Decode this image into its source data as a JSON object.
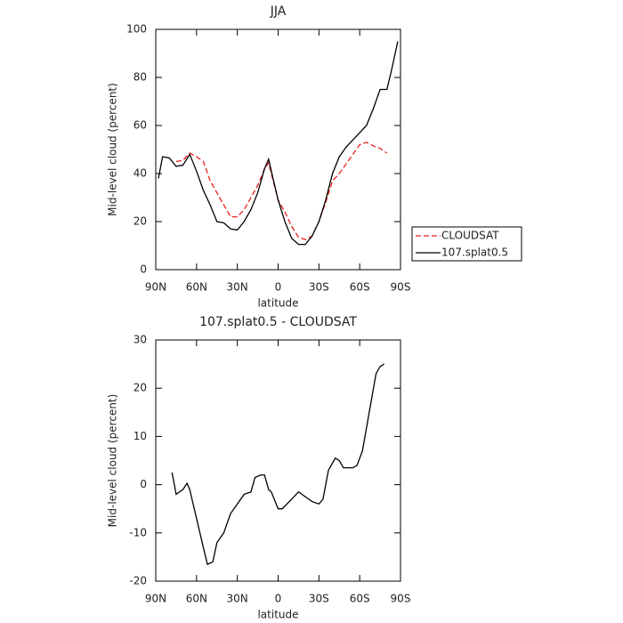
{
  "chart_data": [
    {
      "type": "line",
      "title": "JJA",
      "x_label": "latitude",
      "y_label": "Mid-level cloud (percent)",
      "x": [
        88,
        85,
        80,
        75,
        70,
        65,
        60,
        55,
        50,
        45,
        40,
        35,
        30,
        25,
        20,
        15,
        10,
        7,
        5,
        0,
        -5,
        -10,
        -15,
        -20,
        -25,
        -30,
        -35,
        -40,
        -45,
        -50,
        -55,
        -60,
        -65,
        -70,
        -75,
        -80,
        -83,
        -88
      ],
      "series": [
        {
          "name": "CLOUDSAT",
          "color": "#e8201c",
          "linestyle": "dashed",
          "values": [
            null,
            null,
            null,
            45,
            45.5,
            48.5,
            47,
            45,
            37,
            32,
            27,
            22,
            22,
            25,
            30,
            35,
            42,
            44.5,
            40,
            29,
            24,
            18,
            13.5,
            12.5,
            14,
            20,
            28,
            37,
            40,
            44,
            48,
            52,
            53,
            51.5,
            50.5,
            48.5,
            null,
            null
          ]
        },
        {
          "name": "107.splat0.5",
          "color": "#000000",
          "linestyle": "solid",
          "values": [
            38,
            47,
            46.5,
            43,
            43.5,
            48,
            41,
            33,
            27,
            20,
            19.5,
            17,
            16.5,
            20,
            25,
            32,
            42,
            46,
            41,
            29,
            20,
            13,
            10.5,
            10.5,
            14,
            20,
            29,
            40,
            47,
            51,
            54,
            57,
            60,
            67,
            75,
            75,
            82,
            95
          ]
        }
      ],
      "xlim": [
        90,
        -90
      ],
      "xticks": [
        {
          "value": 90,
          "label": "90N"
        },
        {
          "value": 60,
          "label": "60N"
        },
        {
          "value": 30,
          "label": "30N"
        },
        0,
        {
          "value": -30,
          "label": "30S"
        },
        {
          "value": -60,
          "label": "60S"
        },
        {
          "value": -90,
          "label": "90S"
        }
      ],
      "ylim": [
        0,
        100
      ],
      "yticks": [
        0,
        20,
        40,
        60,
        80,
        100
      ],
      "legend": "right"
    },
    {
      "type": "line",
      "title": "107.splat0.5 - CLOUDSAT",
      "x_label": "latitude",
      "y_label": "Mid-level cloud (percent)",
      "x": [
        78,
        75,
        70,
        67,
        65,
        60,
        55,
        52,
        48,
        45,
        40,
        35,
        30,
        25,
        20,
        17,
        13,
        10,
        7,
        5,
        0,
        -3,
        -10,
        -15,
        -20,
        -25,
        -30,
        -33,
        -37,
        -42,
        -45,
        -48,
        -55,
        -58,
        -62,
        -67,
        -72,
        -75,
        -78
      ],
      "series": [
        {
          "color": "#000000",
          "linestyle": "solid",
          "values": [
            2.5,
            -2,
            -1,
            0.3,
            -1,
            -7,
            -13,
            -16.5,
            -16,
            -12,
            -10,
            -6,
            -4,
            -2,
            -1.5,
            1.5,
            2,
            2,
            -1,
            -1.5,
            -5,
            -5,
            -3,
            -1.5,
            -2.5,
            -3.5,
            -4,
            -3,
            3,
            5.5,
            5,
            3.5,
            3.5,
            4,
            7,
            15,
            23,
            24.5,
            25
          ]
        }
      ],
      "xlim": [
        90,
        -90
      ],
      "xticks": [
        {
          "value": 90,
          "label": "90N"
        },
        {
          "value": 60,
          "label": "60N"
        },
        {
          "value": 30,
          "label": "30N"
        },
        0,
        {
          "value": -30,
          "label": "30S"
        },
        {
          "value": -60,
          "label": "60S"
        },
        {
          "value": -90,
          "label": "90S"
        }
      ],
      "ylim": [
        -20,
        30
      ],
      "yticks": [
        -20,
        -10,
        0,
        10,
        20,
        30
      ]
    }
  ]
}
